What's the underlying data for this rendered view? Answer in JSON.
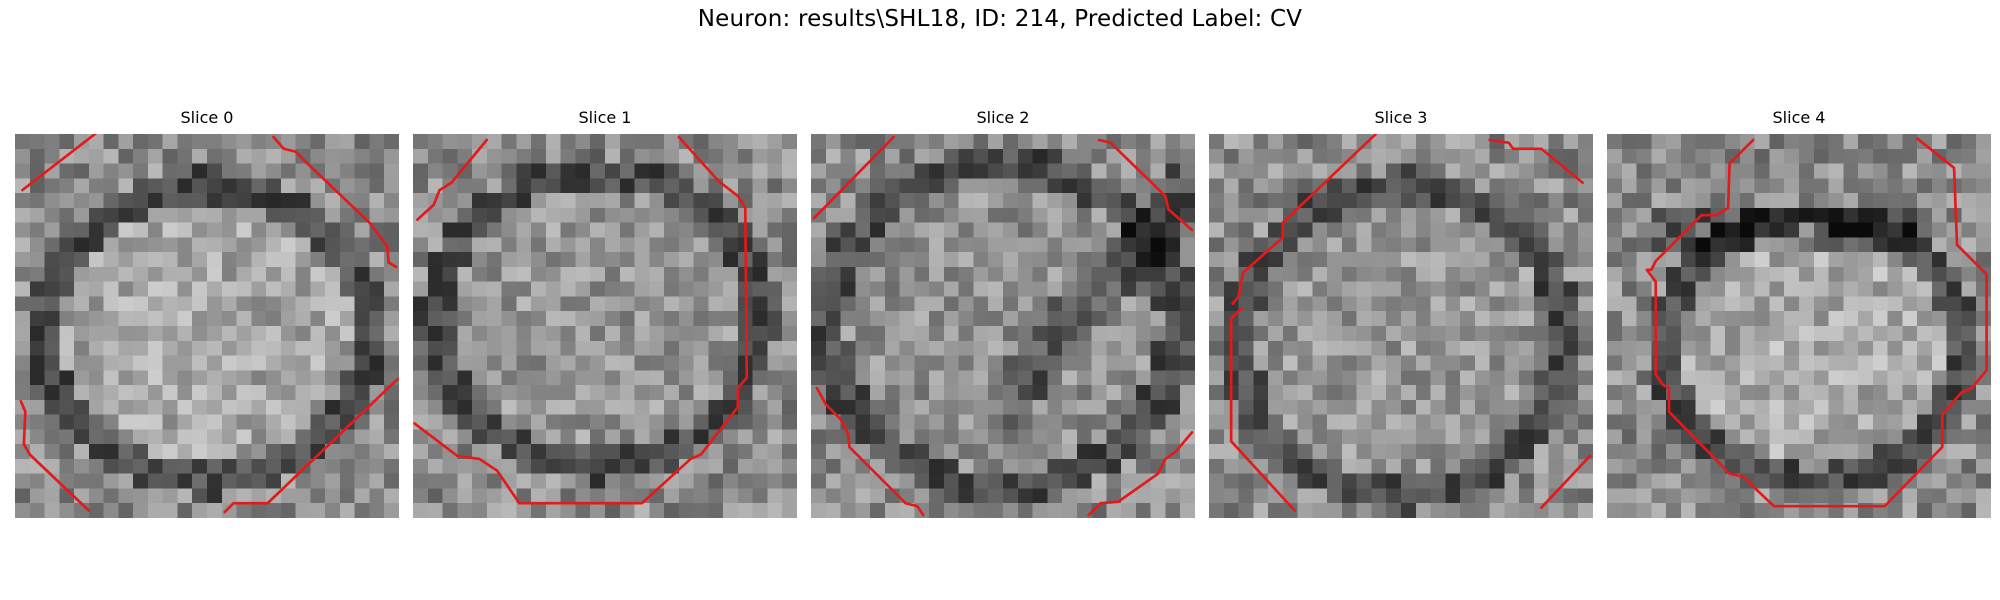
{
  "figure": {
    "title": "Neuron: results\\SHL18, ID: 214, Predicted Label: CV"
  },
  "contour_color": "#e31a1c",
  "grid_size": 26,
  "panels": [
    {
      "title": "Slice 0",
      "contours": [
        [
          [
            0.5,
            3.8
          ],
          [
            5.8,
            -0.3
          ]
        ],
        [
          [
            17.5,
            0.2
          ],
          [
            18.2,
            1.0
          ],
          [
            19.0,
            1.2
          ],
          [
            19.8,
            2.0
          ],
          [
            24.0,
            6.0
          ],
          [
            25.2,
            7.6
          ],
          [
            25.3,
            8.7
          ],
          [
            25.8,
            9.0
          ]
        ],
        [
          [
            0.4,
            18.1
          ],
          [
            0.7,
            18.8
          ],
          [
            0.6,
            21.0
          ],
          [
            1.0,
            21.7
          ],
          [
            5.0,
            25.5
          ]
        ],
        [
          [
            14.2,
            25.6
          ],
          [
            14.8,
            25.0
          ],
          [
            17.1,
            25.0
          ],
          [
            25.9,
            16.6
          ]
        ]
      ]
    },
    {
      "title": "Slice 1",
      "contours": [
        [
          [
            0.3,
            5.8
          ],
          [
            1.4,
            4.8
          ],
          [
            1.8,
            3.8
          ],
          [
            2.6,
            3.3
          ],
          [
            5.0,
            0.4
          ]
        ],
        [
          [
            18.0,
            0.2
          ],
          [
            20.7,
            3.2
          ],
          [
            22.0,
            4.2
          ],
          [
            22.5,
            5.0
          ],
          [
            22.6,
            16.5
          ],
          [
            22.0,
            17.2
          ],
          [
            22.0,
            18.5
          ],
          [
            19.5,
            21.7
          ],
          [
            18.8,
            22.0
          ],
          [
            15.5,
            25.0
          ],
          [
            7.2,
            25.0
          ],
          [
            5.7,
            22.8
          ],
          [
            4.5,
            22.0
          ],
          [
            3.0,
            21.8
          ],
          [
            0.1,
            19.6
          ]
        ]
      ]
    },
    {
      "title": "Slice 2",
      "contours": [
        [
          [
            0.2,
            5.7
          ],
          [
            5.6,
            0.2
          ]
        ],
        [
          [
            19.5,
            0.4
          ],
          [
            20.3,
            0.6
          ],
          [
            20.9,
            1.2
          ],
          [
            24.0,
            4.2
          ],
          [
            24.2,
            5.1
          ],
          [
            25.8,
            6.5
          ]
        ],
        [
          [
            0.4,
            17.2
          ],
          [
            1.0,
            18.3
          ],
          [
            2.0,
            19.3
          ],
          [
            2.5,
            20.3
          ],
          [
            2.6,
            21.2
          ],
          [
            6.4,
            25.0
          ],
          [
            7.2,
            25.2
          ],
          [
            7.6,
            25.8
          ]
        ],
        [
          [
            18.8,
            25.8
          ],
          [
            19.6,
            25.0
          ],
          [
            20.8,
            24.9
          ],
          [
            23.5,
            23.0
          ],
          [
            24.0,
            22.0
          ],
          [
            24.7,
            21.5
          ],
          [
            25.8,
            20.2
          ]
        ]
      ]
    },
    {
      "title": "Slice 3",
      "contours": [
        [
          [
            1.6,
            11.5
          ],
          [
            2.0,
            11.0
          ],
          [
            2.3,
            9.4
          ],
          [
            5.0,
            7.0
          ],
          [
            5.0,
            6.0
          ],
          [
            11.5,
            -0.2
          ]
        ],
        [
          [
            19.0,
            0.4
          ],
          [
            20.3,
            0.6
          ],
          [
            20.6,
            1.0
          ],
          [
            22.5,
            1.0
          ],
          [
            25.3,
            3.3
          ]
        ],
        [
          [
            2.2,
            11.8
          ],
          [
            1.5,
            12.5
          ],
          [
            1.5,
            20.8
          ],
          [
            5.8,
            25.5
          ]
        ],
        [
          [
            22.5,
            25.3
          ],
          [
            25.8,
            21.8
          ]
        ]
      ]
    },
    {
      "title": "Slice 4",
      "contours": [
        [
          [
            9.9,
            0.4
          ],
          [
            8.3,
            2.0
          ],
          [
            8.2,
            5.0
          ],
          [
            7.4,
            5.5
          ],
          [
            6.4,
            5.5
          ],
          [
            3.3,
            8.6
          ],
          [
            3.0,
            9.2
          ],
          [
            2.7,
            9.2
          ],
          [
            3.3,
            10.0
          ],
          [
            3.3,
            16.3
          ],
          [
            3.8,
            17.0
          ],
          [
            4.2,
            17.2
          ],
          [
            4.2,
            18.8
          ],
          [
            8.3,
            23.0
          ],
          [
            9.2,
            23.2
          ],
          [
            11.3,
            25.2
          ],
          [
            18.8,
            25.2
          ],
          [
            22.7,
            21.2
          ],
          [
            22.7,
            19.0
          ],
          [
            24.0,
            17.5
          ],
          [
            24.7,
            17.2
          ],
          [
            25.7,
            16.0
          ],
          [
            25.7,
            9.5
          ],
          [
            23.7,
            7.5
          ],
          [
            23.5,
            2.3
          ],
          [
            21.0,
            0.3
          ]
        ]
      ]
    }
  ]
}
